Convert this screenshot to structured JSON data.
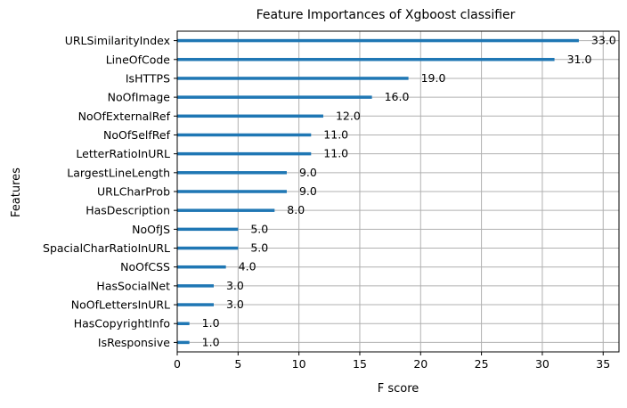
{
  "chart_data": {
    "type": "bar",
    "orientation": "horizontal",
    "title": "Feature Importances of Xgboost classifier",
    "xlabel": "F score",
    "ylabel": "Features",
    "xlim": [
      0,
      36.3
    ],
    "xticks": [
      0,
      5,
      10,
      15,
      20,
      25,
      30,
      35
    ],
    "grid": true,
    "bar_color": "#1f77b4",
    "categories": [
      "URLSimilarityIndex",
      "LineOfCode",
      "IsHTTPS",
      "NoOfImage",
      "NoOfExternalRef",
      "NoOfSelfRef",
      "LetterRatioInURL",
      "LargestLineLength",
      "URLCharProb",
      "HasDescription",
      "NoOfJS",
      "SpacialCharRatioInURL",
      "NoOfCSS",
      "HasSocialNet",
      "NoOfLettersInURL",
      "HasCopyrightInfo",
      "IsResponsive"
    ],
    "values": [
      33,
      31,
      19,
      16,
      12,
      11,
      11,
      9,
      9,
      8,
      5,
      5,
      4,
      3,
      3,
      1,
      1
    ],
    "value_labels": [
      "33.0",
      "31.0",
      "19.0",
      "16.0",
      "12.0",
      "11.0",
      "11.0",
      "9.0",
      "9.0",
      "8.0",
      "5.0",
      "5.0",
      "4.0",
      "3.0",
      "3.0",
      "1.0",
      "1.0"
    ]
  }
}
